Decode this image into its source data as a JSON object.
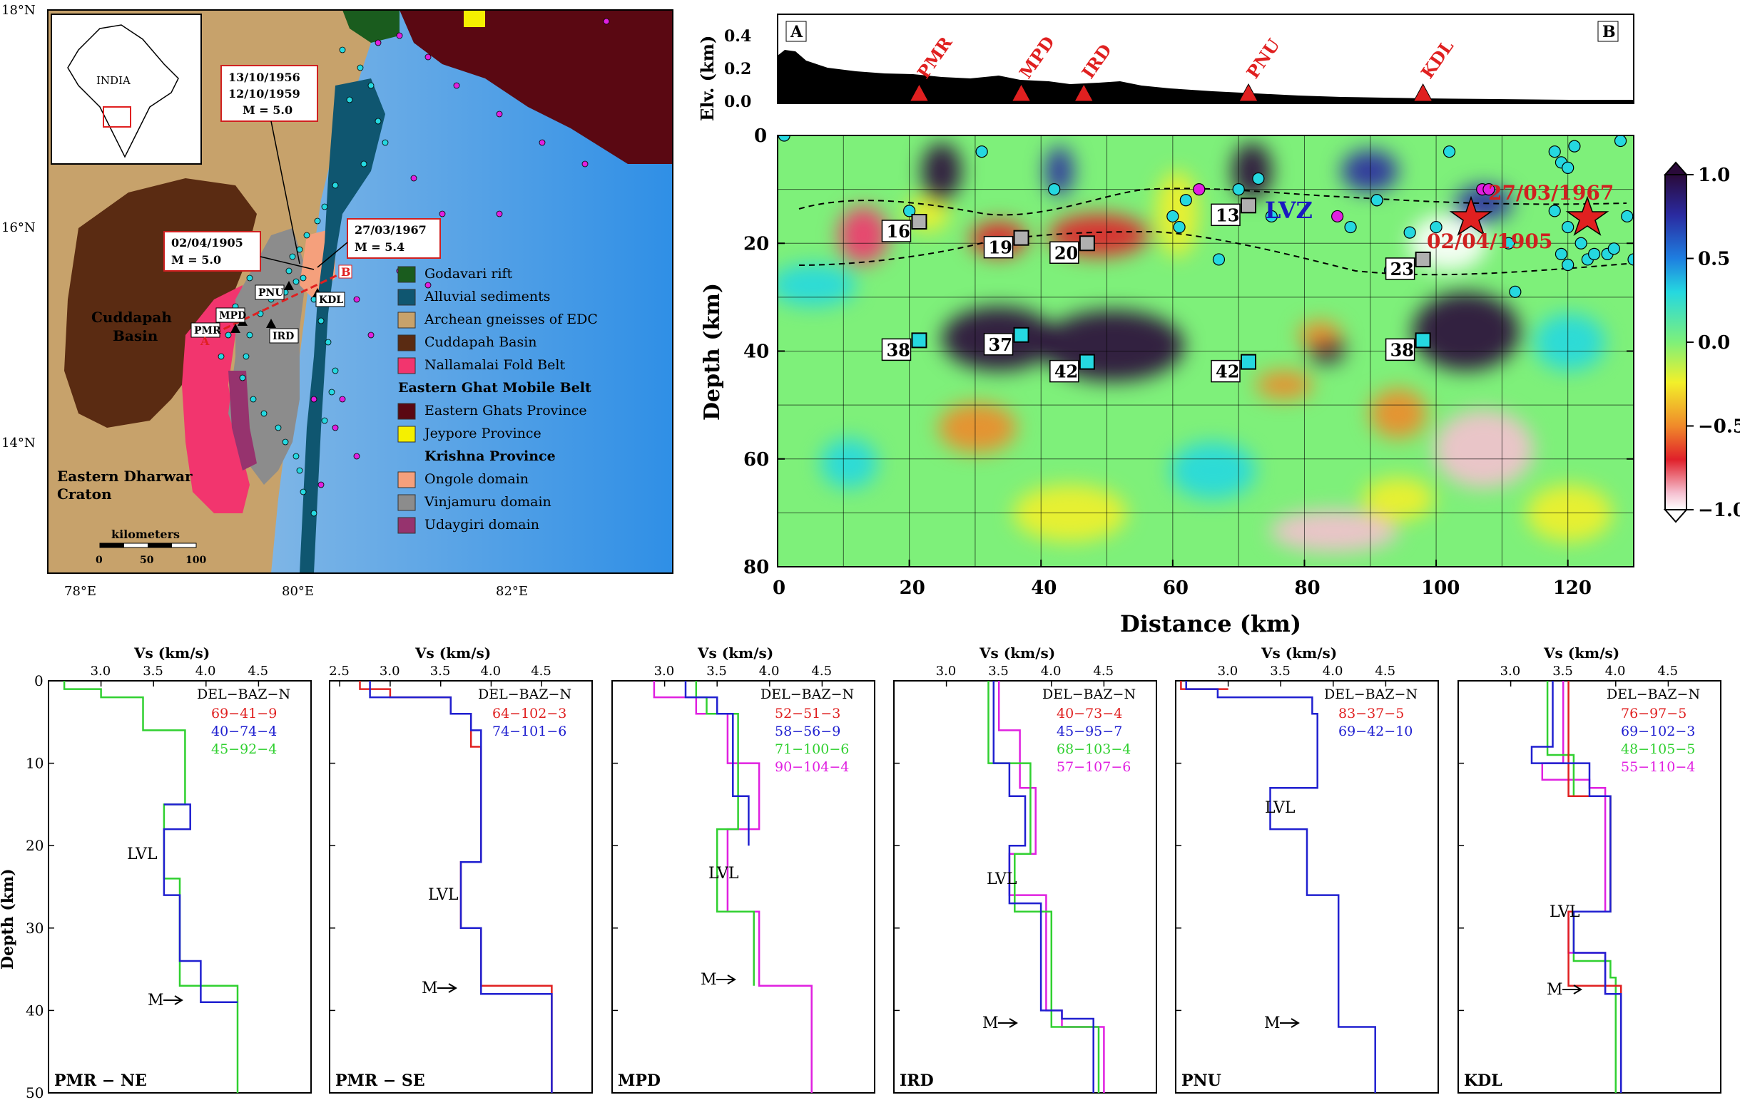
{
  "map": {
    "lat_labels": [
      "18°N",
      "16°N",
      "14°N"
    ],
    "lon_labels": [
      "78°E",
      "80°E",
      "82°E"
    ],
    "inset_label": "INDIA",
    "region_labels": {
      "cuddapah": [
        "Cuddapah",
        "Basin"
      ],
      "dharwar": [
        "Eastern Dharwar",
        "Craton"
      ]
    },
    "stations": [
      "PNU",
      "KDL",
      "MPD",
      "PMR",
      "IRD"
    ],
    "profile_ends": [
      "A",
      "B"
    ],
    "event_boxes": [
      {
        "lines": [
          "13/10/1956",
          "12/10/1959",
          "M = 5.0"
        ]
      },
      {
        "lines": [
          "27/03/1967",
          "M = 5.4"
        ]
      },
      {
        "lines": [
          "02/04/1905",
          "M = 5.0"
        ]
      }
    ],
    "scale": {
      "title": "kilometers",
      "ticks": [
        "0",
        "50",
        "100"
      ]
    },
    "legend": {
      "items": [
        {
          "label": "Godavari rift",
          "color": "#1a5c1e"
        },
        {
          "label": "Alluvial sediments",
          "color": "#0f5670"
        },
        {
          "label": "Archean gneisses of EDC",
          "color": "#c7a26b"
        },
        {
          "label": "Cuddapah Basin",
          "color": "#5a2b12"
        },
        {
          "label": "Nallamalai Fold Belt",
          "color": "#f2356e"
        }
      ],
      "heading1": "Eastern Ghat Mobile Belt",
      "items2": [
        {
          "label": "Eastern Ghats Province",
          "color": "#5a0812"
        },
        {
          "label": "Jeypore Province",
          "color": "#f5f000"
        }
      ],
      "heading2": "Krishna Province",
      "items3": [
        {
          "label": "Ongole domain",
          "color": "#f5a07c"
        },
        {
          "label": "Vinjamuru domain",
          "color": "#8c8c8c"
        },
        {
          "label": "Udaygiri domain",
          "color": "#96336e"
        }
      ]
    }
  },
  "section": {
    "elev_ylabel": "Elv. (km)",
    "elev_ticks": [
      "0.4",
      "0.2",
      "0.0"
    ],
    "corner_labels": [
      "A",
      "B"
    ],
    "stations": [
      {
        "name": "PMR",
        "x": 21.5
      },
      {
        "name": "MPD",
        "x": 37.0
      },
      {
        "name": "IRD",
        "x": 46.5
      },
      {
        "name": "PNU",
        "x": 71.5
      },
      {
        "name": "KDL",
        "x": 98.0
      }
    ],
    "depth_label": "Depth (km)",
    "distance_label": "Distance (km)",
    "x_ticks": [
      0,
      20,
      40,
      60,
      80,
      100,
      120
    ],
    "y_ticks": [
      0,
      20,
      40,
      60,
      80
    ],
    "moho_markers": [
      {
        "x": 21.5,
        "d": 38,
        "label": "38"
      },
      {
        "x": 37.0,
        "d": 37,
        "label": "37"
      },
      {
        "x": 47.0,
        "d": 42,
        "label": "42"
      },
      {
        "x": 71.5,
        "d": 42,
        "label": "42"
      },
      {
        "x": 98.0,
        "d": 38,
        "label": "38"
      }
    ],
    "lvz_markers": [
      {
        "x": 21.5,
        "d": 16,
        "label": "16"
      },
      {
        "x": 37.0,
        "d": 19,
        "label": "19"
      },
      {
        "x": 47.0,
        "d": 20,
        "label": "20"
      },
      {
        "x": 71.5,
        "d": 13,
        "label": "13"
      },
      {
        "x": 98.0,
        "d": 23,
        "label": "23"
      }
    ],
    "lvz_label": "LVZ",
    "quake_labels": [
      "27/03/1967",
      "02/04/1905"
    ],
    "colorbar_ticks": [
      "1.0",
      "0.5",
      "0.0",
      "−0.5",
      "−1.0"
    ]
  },
  "profiles_common": {
    "xlabel": "Vs (km/s)",
    "ylabel": "Depth (km)",
    "depth_ticks": [
      "0",
      "10",
      "20",
      "30",
      "40",
      "50"
    ],
    "table_header": "DEL−BAZ−N",
    "lvl": "LVL",
    "moho": "M"
  },
  "profiles": [
    {
      "title": "PMR − NE",
      "xticks": [
        "3.0",
        "3.5",
        "4.0",
        "4.5"
      ],
      "entries": [
        {
          "text": "69−41−9",
          "color": "#e02020"
        },
        {
          "text": "40−74−4",
          "color": "#2020d0"
        },
        {
          "text": "45−92−4",
          "color": "#30d030"
        }
      ]
    },
    {
      "title": "PMR − SE",
      "xticks": [
        "2.5",
        "3.0",
        "3.5",
        "4.0",
        "4.5"
      ],
      "entries": [
        {
          "text": "64−102−3",
          "color": "#e02020"
        },
        {
          "text": "74−101−6",
          "color": "#2020d0"
        }
      ]
    },
    {
      "title": "MPD",
      "xticks": [
        "3.0",
        "3.5",
        "4.0",
        "4.5"
      ],
      "entries": [
        {
          "text": "52−51−3",
          "color": "#e02020"
        },
        {
          "text": "58−56−9",
          "color": "#2020d0"
        },
        {
          "text": "71−100−6",
          "color": "#30d030"
        },
        {
          "text": "90−104−4",
          "color": "#e020e0"
        }
      ]
    },
    {
      "title": "IRD",
      "xticks": [
        "3.0",
        "3.5",
        "4.0",
        "4.5"
      ],
      "entries": [
        {
          "text": "40−73−4",
          "color": "#e02020"
        },
        {
          "text": "45−95−7",
          "color": "#2020d0"
        },
        {
          "text": "68−103−4",
          "color": "#30d030"
        },
        {
          "text": "57−107−6",
          "color": "#e020e0"
        }
      ]
    },
    {
      "title": "PNU",
      "xticks": [
        "3.0",
        "3.5",
        "4.0",
        "4.5"
      ],
      "entries": [
        {
          "text": "83−37−5",
          "color": "#e02020"
        },
        {
          "text": "69−42−10",
          "color": "#2020d0"
        }
      ]
    },
    {
      "title": "KDL",
      "xticks": [
        "3.0",
        "3.5",
        "4.0",
        "4.5"
      ],
      "entries": [
        {
          "text": "76−97−5",
          "color": "#e02020"
        },
        {
          "text": "69−102−3",
          "color": "#2020d0"
        },
        {
          "text": "48−105−5",
          "color": "#30d030"
        },
        {
          "text": "55−110−4",
          "color": "#e020e0"
        }
      ]
    }
  ]
}
